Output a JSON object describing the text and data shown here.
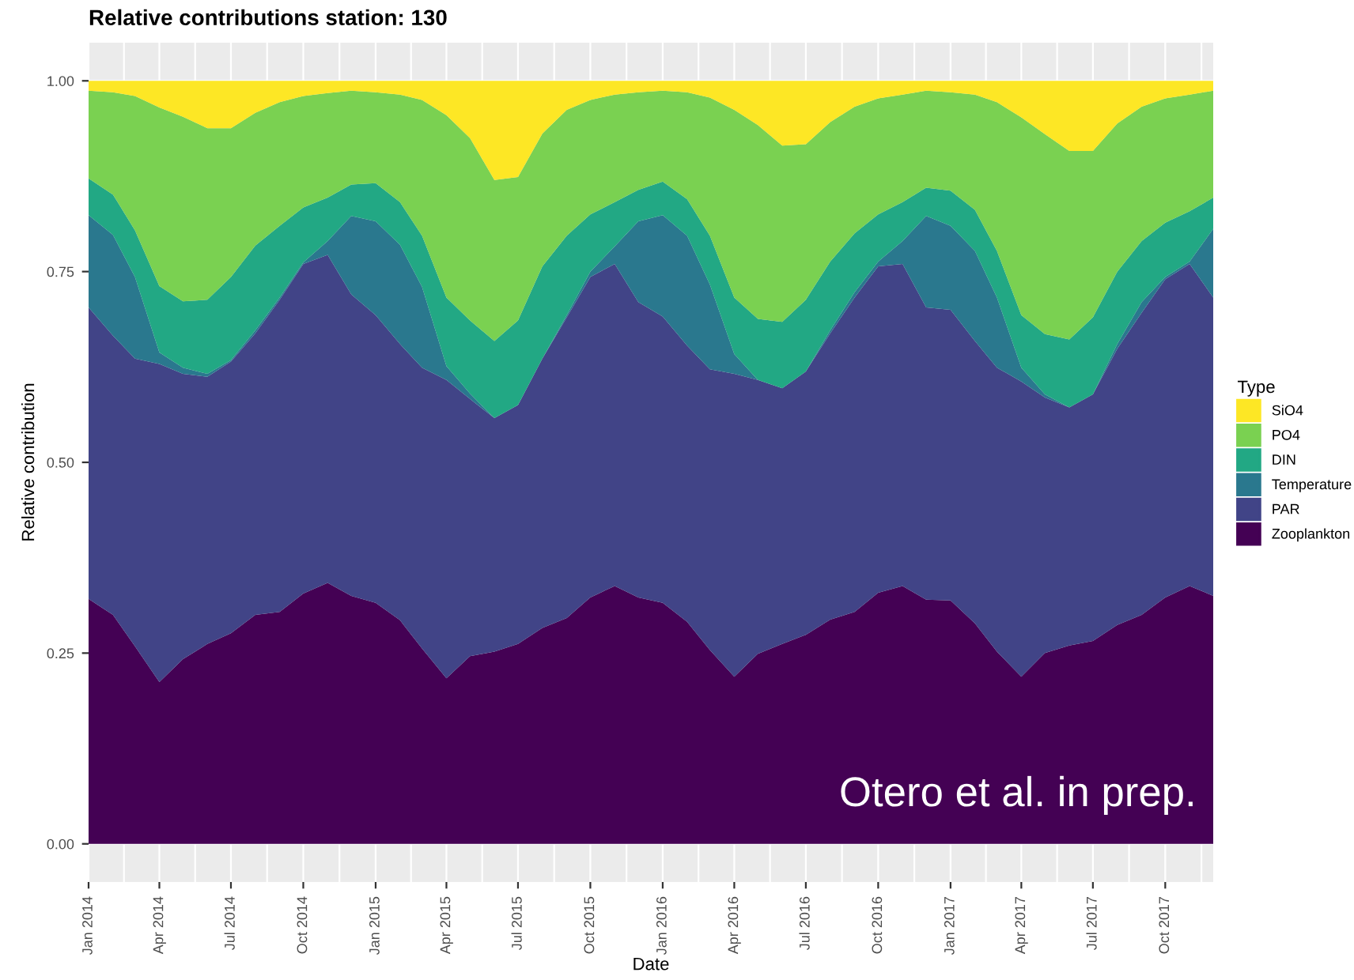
{
  "chart_data": {
    "type": "area",
    "stacked": true,
    "title": "Relative contributions station: 130",
    "xlabel": "Date",
    "ylabel": "Relative contribution",
    "legend_title": "Type",
    "legend": "right",
    "grid": true,
    "annotations": [
      "Otero et al. in prep."
    ],
    "x": [
      "2014-01",
      "2014-02",
      "2014-03",
      "2014-04",
      "2014-05",
      "2014-06",
      "2014-07",
      "2014-08",
      "2014-09",
      "2014-10",
      "2014-11",
      "2014-12",
      "2015-01",
      "2015-02",
      "2015-03",
      "2015-04",
      "2015-05",
      "2015-06",
      "2015-07",
      "2015-08",
      "2015-09",
      "2015-10",
      "2015-11",
      "2015-12",
      "2016-01",
      "2016-02",
      "2016-03",
      "2016-04",
      "2016-05",
      "2016-06",
      "2016-07",
      "2016-08",
      "2016-09",
      "2016-10",
      "2016-11",
      "2016-12",
      "2017-01",
      "2017-02",
      "2017-03",
      "2017-04",
      "2017-05",
      "2017-06",
      "2017-07",
      "2017-08",
      "2017-09",
      "2017-10",
      "2017-11",
      "2017-12"
    ],
    "xlim": [
      "2014-01",
      "2017-12"
    ],
    "xticks": [
      {
        "value": "2014-01",
        "label": "Jan 2014"
      },
      {
        "value": "2014-04",
        "label": "Apr 2014"
      },
      {
        "value": "2014-07",
        "label": "Jul 2014"
      },
      {
        "value": "2014-10",
        "label": "Oct 2014"
      },
      {
        "value": "2015-01",
        "label": "Jan 2015"
      },
      {
        "value": "2015-04",
        "label": "Apr 2015"
      },
      {
        "value": "2015-07",
        "label": "Jul 2015"
      },
      {
        "value": "2015-10",
        "label": "Oct 2015"
      },
      {
        "value": "2016-01",
        "label": "Jan 2016"
      },
      {
        "value": "2016-04",
        "label": "Apr 2016"
      },
      {
        "value": "2016-07",
        "label": "Jul 2016"
      },
      {
        "value": "2016-10",
        "label": "Oct 2016"
      },
      {
        "value": "2017-01",
        "label": "Jan 2017"
      },
      {
        "value": "2017-04",
        "label": "Apr 2017"
      },
      {
        "value": "2017-07",
        "label": "Jul 2017"
      },
      {
        "value": "2017-10",
        "label": "Oct 2017"
      }
    ],
    "ylim": [
      -0.05,
      1.05
    ],
    "yticks": [
      {
        "value": 0,
        "label": "0.00"
      },
      {
        "value": 0.25,
        "label": "0.25"
      },
      {
        "value": 0.5,
        "label": "0.50"
      },
      {
        "value": 0.75,
        "label": "0.75"
      },
      {
        "value": 1,
        "label": "1.00"
      }
    ],
    "series": [
      {
        "name": "Zooplankton",
        "color": "#440154",
        "values": [
          0.321,
          0.3,
          0.259,
          0.212,
          0.242,
          0.262,
          0.276,
          0.3,
          0.304,
          0.328,
          0.342,
          0.325,
          0.316,
          0.293,
          0.256,
          0.217,
          0.246,
          0.252,
          0.262,
          0.283,
          0.296,
          0.323,
          0.338,
          0.323,
          0.316,
          0.291,
          0.254,
          0.219,
          0.249,
          0.262,
          0.274,
          0.294,
          0.304,
          0.329,
          0.338,
          0.32,
          0.319,
          0.289,
          0.252,
          0.219,
          0.25,
          0.26,
          0.266,
          0.287,
          0.3,
          0.323,
          0.338,
          0.325
        ]
      },
      {
        "name": "PAR",
        "color": "#414487",
        "values": [
          0.382,
          0.366,
          0.377,
          0.417,
          0.374,
          0.35,
          0.356,
          0.369,
          0.409,
          0.432,
          0.43,
          0.395,
          0.377,
          0.362,
          0.368,
          0.391,
          0.337,
          0.306,
          0.313,
          0.353,
          0.394,
          0.42,
          0.422,
          0.387,
          0.375,
          0.362,
          0.368,
          0.397,
          0.359,
          0.335,
          0.345,
          0.375,
          0.412,
          0.428,
          0.422,
          0.383,
          0.381,
          0.37,
          0.372,
          0.387,
          0.335,
          0.312,
          0.323,
          0.362,
          0.396,
          0.417,
          0.422,
          0.391
        ]
      },
      {
        "name": "Temperature",
        "color": "#2a788e",
        "values": [
          0.121,
          0.132,
          0.107,
          0.015,
          0.008,
          0.004,
          0.002,
          0.004,
          0.003,
          0.002,
          0.018,
          0.103,
          0.123,
          0.13,
          0.106,
          0.018,
          0.007,
          0,
          0,
          0,
          0.003,
          0.007,
          0.023,
          0.106,
          0.133,
          0.144,
          0.111,
          0.026,
          0,
          0,
          0,
          0.004,
          0.007,
          0.006,
          0.03,
          0.12,
          0.11,
          0.118,
          0.092,
          0.018,
          0.004,
          0,
          0,
          0.006,
          0.014,
          0.003,
          0.003,
          0.09
        ]
      },
      {
        "name": "DIN",
        "color": "#22a884",
        "values": [
          0.048,
          0.053,
          0.061,
          0.087,
          0.087,
          0.097,
          0.109,
          0.111,
          0.094,
          0.072,
          0.057,
          0.041,
          0.05,
          0.056,
          0.067,
          0.09,
          0.096,
          0.101,
          0.111,
          0.121,
          0.104,
          0.075,
          0.058,
          0.041,
          0.044,
          0.048,
          0.064,
          0.074,
          0.08,
          0.087,
          0.094,
          0.09,
          0.077,
          0.062,
          0.051,
          0.037,
          0.046,
          0.054,
          0.061,
          0.069,
          0.079,
          0.089,
          0.101,
          0.095,
          0.08,
          0.071,
          0.066,
          0.041
        ]
      },
      {
        "name": "PO4",
        "color": "#7ad151",
        "values": [
          0.115,
          0.134,
          0.176,
          0.234,
          0.242,
          0.225,
          0.195,
          0.174,
          0.162,
          0.146,
          0.137,
          0.123,
          0.119,
          0.141,
          0.178,
          0.239,
          0.239,
          0.211,
          0.188,
          0.174,
          0.165,
          0.15,
          0.141,
          0.128,
          0.119,
          0.14,
          0.181,
          0.246,
          0.254,
          0.231,
          0.204,
          0.183,
          0.166,
          0.152,
          0.141,
          0.127,
          0.129,
          0.151,
          0.195,
          0.259,
          0.262,
          0.247,
          0.218,
          0.194,
          0.176,
          0.163,
          0.153,
          0.14
        ]
      },
      {
        "name": "SiO4",
        "color": "#fde725",
        "values": [
          0.013,
          0.015,
          0.02,
          0.035,
          0.047,
          0.062,
          0.062,
          0.042,
          0.028,
          0.02,
          0.016,
          0.013,
          0.015,
          0.018,
          0.025,
          0.045,
          0.075,
          0.13,
          0.126,
          0.069,
          0.038,
          0.025,
          0.018,
          0.015,
          0.013,
          0.015,
          0.022,
          0.038,
          0.058,
          0.085,
          0.083,
          0.054,
          0.034,
          0.023,
          0.018,
          0.013,
          0.015,
          0.018,
          0.028,
          0.048,
          0.07,
          0.092,
          0.092,
          0.056,
          0.034,
          0.023,
          0.018,
          0.013
        ]
      }
    ]
  }
}
